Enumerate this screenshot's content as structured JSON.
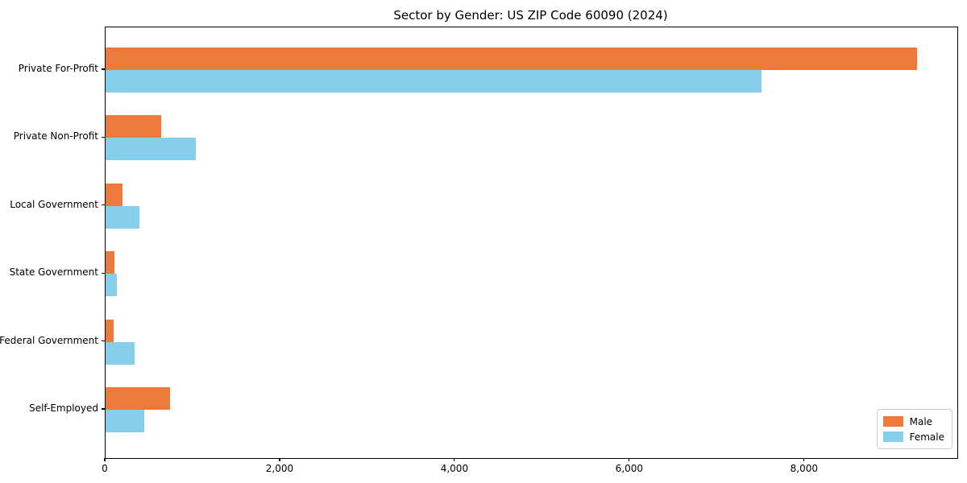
{
  "title": "Sector by Gender: US ZIP Code 60090 (2024)",
  "colors": {
    "male": "#EC7A3D",
    "female": "#87CEEB",
    "axis": "#000000",
    "legend_border": "#CCCCCC",
    "background": "#FFFFFF"
  },
  "chart_data": {
    "type": "bar",
    "orientation": "horizontal",
    "title": "Sector by Gender: US ZIP Code 60090 (2024)",
    "xlabel": "",
    "ylabel": "",
    "categories": [
      "Private For-Profit",
      "Private Non-Profit",
      "Local Government",
      "State Government",
      "Federal Government",
      "Self-Employed"
    ],
    "series": [
      {
        "name": "Male",
        "color": "#EC7A3D",
        "values": [
          9280,
          640,
          195,
          105,
          90,
          740
        ]
      },
      {
        "name": "Female",
        "color": "#87CEEB",
        "values": [
          7500,
          1030,
          385,
          130,
          330,
          445
        ]
      }
    ],
    "xlim": [
      0,
      9744
    ],
    "xticks": [
      0,
      2000,
      4000,
      6000,
      8000
    ],
    "xtick_labels": [
      "0",
      "2,000",
      "4,000",
      "6,000",
      "8,000"
    ],
    "grid": false,
    "legend": {
      "position": "lower right",
      "entries": [
        "Male",
        "Female"
      ]
    }
  }
}
